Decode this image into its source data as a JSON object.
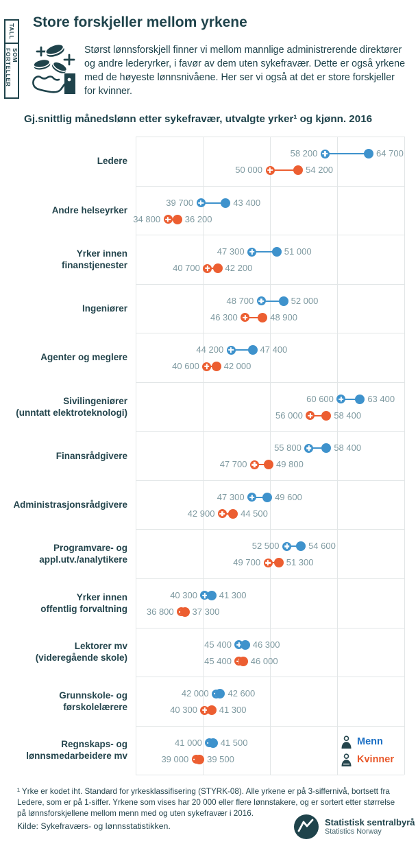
{
  "sidebar": {
    "tab_top": "TALL",
    "tab_bottom": "SOM FORTELLER"
  },
  "header": {
    "title": "Store forskjeller mellom yrkene",
    "intro": "Størst lønnsforskjell finner vi mellom mannlige administrerende direktører og andre lederyrker, i favør av dem uten sykefravær. Dette er også yrkene med de høyeste lønnsnivåene. Her ser vi også at det er store forskjeller for kvinner.",
    "icon": "hand-catching-coins-icon"
  },
  "chart_data": {
    "type": "dumbbell",
    "title": "Gj.snittlig månedslønn etter sykefravær, utvalgte yrker¹ og kjønn. 2016",
    "xlim": [
      30000,
      70000
    ],
    "grid_step": 10000,
    "grid": "on",
    "marker_semantics": {
      "cross_dot": "med sykefravær (lavere verdi)",
      "solid_dot": "uten sykefravær (høyere verdi)"
    },
    "series_colors": {
      "menn": "#3e92cc",
      "kvinner": "#ec5e31"
    },
    "legend": [
      {
        "label": "Menn",
        "color": "#1d70c4",
        "icon": "man-icon"
      },
      {
        "label": "Kvinner",
        "color": "#e8582a",
        "icon": "woman-icon"
      }
    ],
    "legend_position": "bottom-right inside plot",
    "categories": [
      {
        "name": "Ledere",
        "menn": {
          "med": 58200,
          "uten": 64700
        },
        "kvinner": {
          "med": 50000,
          "uten": 54200
        }
      },
      {
        "name": "Andre helseyrker",
        "menn": {
          "med": 39700,
          "uten": 43400
        },
        "kvinner": {
          "med": 34800,
          "uten": 36200
        }
      },
      {
        "name": "Yrker innen\nfinanstjenester",
        "menn": {
          "med": 47300,
          "uten": 51000
        },
        "kvinner": {
          "med": 40700,
          "uten": 42200
        }
      },
      {
        "name": "Ingeniører",
        "menn": {
          "med": 48700,
          "uten": 52000
        },
        "kvinner": {
          "med": 46300,
          "uten": 48900
        }
      },
      {
        "name": "Agenter og meglere",
        "menn": {
          "med": 44200,
          "uten": 47400
        },
        "kvinner": {
          "med": 40600,
          "uten": 42000
        }
      },
      {
        "name": "Sivilingeniører\n(unntatt elektroteknologi)",
        "menn": {
          "med": 60600,
          "uten": 63400
        },
        "kvinner": {
          "med": 56000,
          "uten": 58400
        }
      },
      {
        "name": "Finansrådgivere",
        "menn": {
          "med": 55800,
          "uten": 58400
        },
        "kvinner": {
          "med": 47700,
          "uten": 49800
        }
      },
      {
        "name": "Administrasjonsrådgivere",
        "menn": {
          "med": 47300,
          "uten": 49600
        },
        "kvinner": {
          "med": 42900,
          "uten": 44500
        }
      },
      {
        "name": "Programvare- og\nappl.utv./analytikere",
        "menn": {
          "med": 52500,
          "uten": 54600
        },
        "kvinner": {
          "med": 49700,
          "uten": 51300
        }
      },
      {
        "name": "Yrker innen\noffentlig forvaltning",
        "menn": {
          "med": 40300,
          "uten": 41300
        },
        "kvinner": {
          "med": 36800,
          "uten": 37300
        }
      },
      {
        "name": "Lektorer mv\n(videregående skole)",
        "menn": {
          "med": 45400,
          "uten": 46300
        },
        "kvinner": {
          "med": 45400,
          "uten": 46000
        }
      },
      {
        "name": "Grunnskole- og\nførskolelærere",
        "menn": {
          "med": 42000,
          "uten": 42600
        },
        "kvinner": {
          "med": 40300,
          "uten": 41300
        }
      },
      {
        "name": "Regnskaps- og\nlønnsmedarbeidere mv",
        "menn": {
          "med": 41000,
          "uten": 41500
        },
        "kvinner": {
          "med": 39000,
          "uten": 39500
        }
      }
    ]
  },
  "footer": {
    "footnote": "¹ Yrke er kodet iht. Standard for yrkesklassifisering (STYRK-08). Alle yrkene er på 3-siffernivå, bortsett fra Ledere, som er på 1-siffer. Yrkene som vises har 20 000 eller flere lønnstakere, og er sortert etter størrelse på lønnsforskjellene mellom menn med og uten sykefravær i 2016.",
    "source": "Kilde: Sykefraværs- og lønnsstatistikken.",
    "logo": {
      "name": "Statistisk sentralbyrå",
      "subtitle": "Statistics Norway"
    }
  },
  "colors": {
    "dark_teal": "#1f434b",
    "value_label_gray": "#7f9aa1",
    "gridline": "#e2e6e7"
  }
}
